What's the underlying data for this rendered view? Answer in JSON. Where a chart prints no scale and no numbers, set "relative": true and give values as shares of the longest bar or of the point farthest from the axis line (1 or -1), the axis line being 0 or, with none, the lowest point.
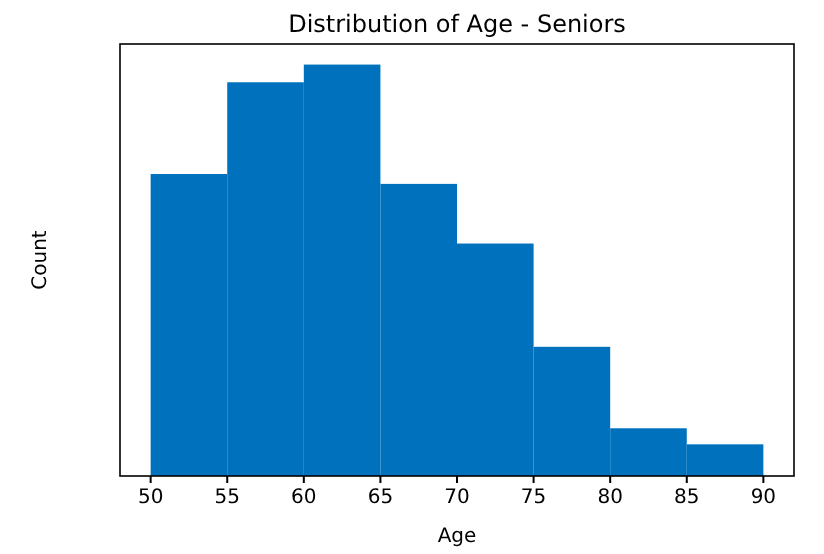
{
  "chart_data": {
    "type": "bar",
    "title": "Distribution of Age - Seniors",
    "xlabel": "Age",
    "ylabel": "Count",
    "relative": true,
    "x": [
      52.5,
      57.5,
      62.5,
      67.5,
      72.5,
      77.5,
      82.5,
      87.5
    ],
    "values": [
      0.734,
      0.957,
      1,
      0.71,
      0.565,
      0.314,
      0.116,
      0.077
    ],
    "color": "#0072bd",
    "xlim": [
      48,
      92
    ],
    "xticks": [
      50,
      55,
      60,
      65,
      70,
      75,
      80,
      85,
      90
    ]
  }
}
